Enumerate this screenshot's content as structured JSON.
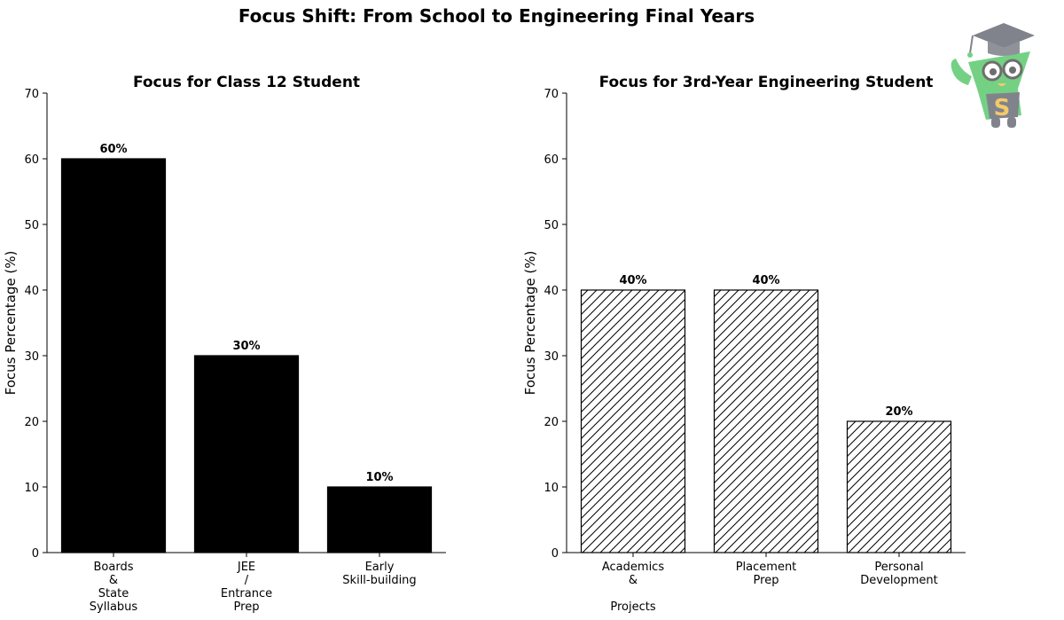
{
  "title": "Focus Shift: From School to Engineering Final Years",
  "colors": {
    "bar_solid": "#000000",
    "bar_hatched_fill": "#ffffff",
    "edge": "#000000",
    "logo_green": "#5cc96f",
    "logo_gray": "#6b6e78",
    "logo_letter": "#f2c14e"
  },
  "logo": {
    "icon": "graduate-mascot-logo",
    "letter": "S"
  },
  "chart_data": [
    {
      "type": "bar",
      "title": "Focus for Class 12 Student",
      "ylabel": "Focus Percentage (%)",
      "xlabel": "",
      "categories": [
        "Boards\n&\nState\nSyllabus",
        "JEE\n/\nEntrance\nPrep",
        "Early\nSkill-building"
      ],
      "values": [
        60,
        30,
        10
      ],
      "data_labels": [
        "60%",
        "30%",
        "10%"
      ],
      "ylim": [
        0,
        70
      ],
      "yticks": [
        0,
        10,
        20,
        30,
        40,
        50,
        60,
        70
      ],
      "style": "solid",
      "grid": false
    },
    {
      "type": "bar",
      "title": "Focus for 3rd-Year Engineering Student",
      "ylabel": "Focus Percentage (%)",
      "xlabel": "",
      "categories": [
        "Academics\n&\n\nProjects",
        "Placement\nPrep",
        "Personal\nDevelopment"
      ],
      "values": [
        40,
        40,
        20
      ],
      "data_labels": [
        "40%",
        "40%",
        "20%"
      ],
      "ylim": [
        0,
        70
      ],
      "yticks": [
        0,
        10,
        20,
        30,
        40,
        50,
        60,
        70
      ],
      "style": "hatched",
      "grid": false
    }
  ]
}
